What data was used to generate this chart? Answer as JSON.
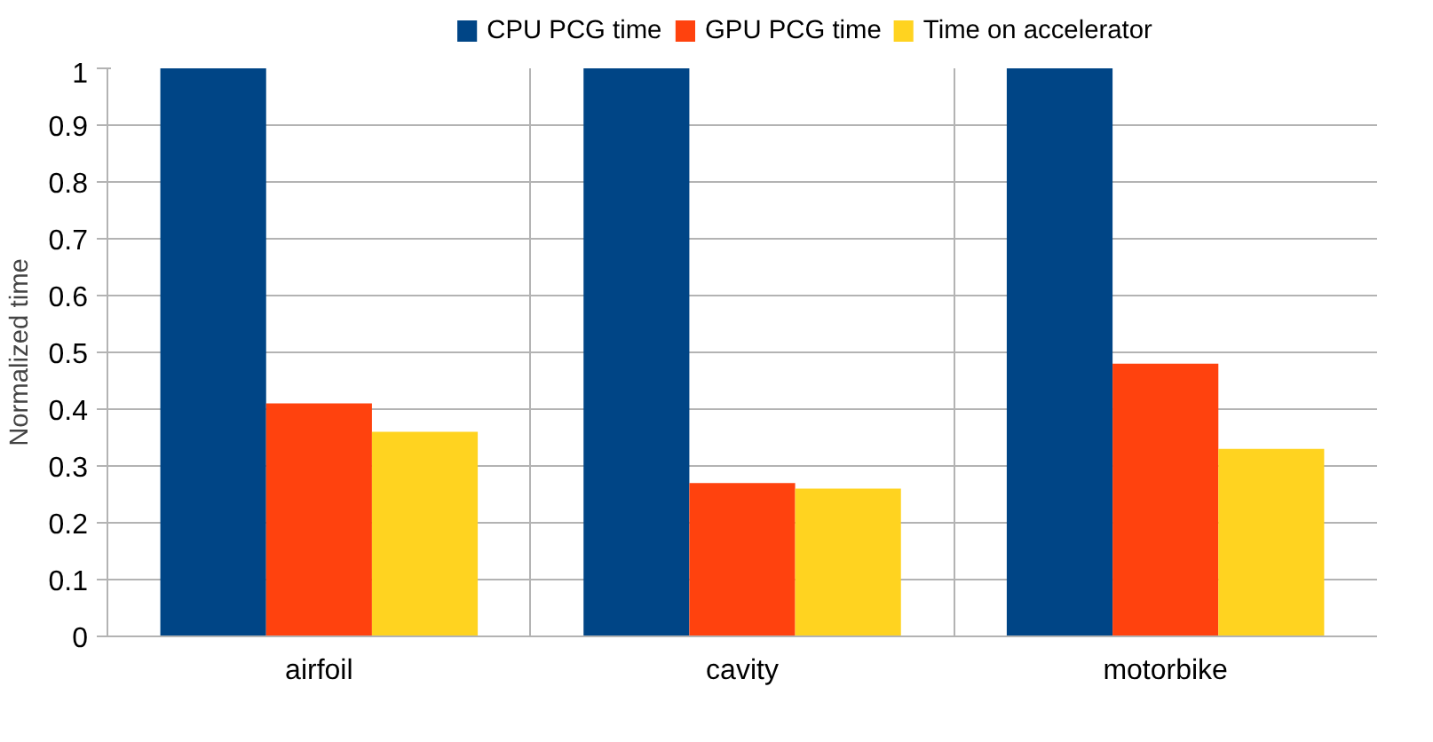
{
  "chart_data": {
    "type": "bar",
    "ylabel": "Normalized time",
    "categories": [
      "airfoil",
      "cavity",
      "motorbike"
    ],
    "series": [
      {
        "name": "CPU PCG time",
        "color": "#004586",
        "values": [
          1,
          1,
          1
        ]
      },
      {
        "name": "GPU PCG time",
        "color": "#ff420e",
        "values": [
          0.41,
          0.27,
          0.48
        ]
      },
      {
        "name": "Time on accelerator",
        "color": "#ffd320",
        "values": [
          0.36,
          0.26,
          0.33
        ]
      }
    ],
    "ylim": [
      0,
      1
    ],
    "yticks": [
      0,
      0.1,
      0.2,
      0.3,
      0.4,
      0.5,
      0.6,
      0.7,
      0.8,
      0.9,
      1
    ],
    "grid": true,
    "legend": "top"
  }
}
